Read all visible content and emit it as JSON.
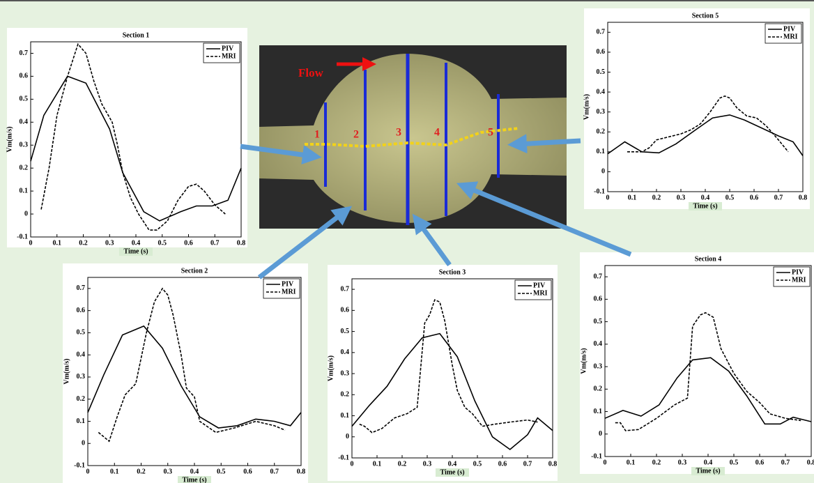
{
  "image": {
    "flow_label": "Flow",
    "section_labels": [
      "1",
      "2",
      "3",
      "4",
      "5"
    ]
  },
  "chart_data": [
    {
      "type": "line",
      "title": "Section 1",
      "x_label": "Time (s)",
      "y_label": "Vm(m/s)",
      "xlim": [
        0,
        0.8
      ],
      "ylim": [
        -0.1,
        0.75
      ],
      "xticks": [
        0,
        0.1,
        0.2,
        0.3,
        0.4,
        0.5,
        0.6,
        0.7,
        0.8
      ],
      "yticks": [
        -0.1,
        0,
        0.1,
        0.2,
        0.3,
        0.4,
        0.5,
        0.6,
        0.7
      ],
      "legend": "upper-right",
      "series": [
        {
          "name": "PIV",
          "color": "#000000",
          "line_style": "solid",
          "x": [
            0,
            0.05,
            0.14,
            0.21,
            0.3,
            0.35,
            0.43,
            0.49,
            0.57,
            0.63,
            0.69,
            0.75,
            0.8
          ],
          "values": [
            0.23,
            0.43,
            0.6,
            0.57,
            0.37,
            0.18,
            0.01,
            -0.03,
            0.01,
            0.035,
            0.035,
            0.06,
            0.2
          ]
        },
        {
          "name": "MRI",
          "color": "#000000",
          "line_style": "dashed",
          "x": [
            0.04,
            0.07,
            0.1,
            0.14,
            0.18,
            0.21,
            0.24,
            0.27,
            0.31,
            0.33,
            0.35,
            0.38,
            0.41,
            0.45,
            0.48,
            0.52,
            0.56,
            0.6,
            0.63,
            0.66,
            0.7,
            0.74
          ],
          "values": [
            0.02,
            0.2,
            0.43,
            0.6,
            0.74,
            0.7,
            0.58,
            0.48,
            0.4,
            0.3,
            0.18,
            0.07,
            0.0,
            -0.07,
            -0.07,
            -0.03,
            0.06,
            0.12,
            0.13,
            0.1,
            0.04,
            0.0
          ]
        }
      ]
    },
    {
      "type": "line",
      "title": "Section 2",
      "x_label": "Time (s)",
      "y_label": "Vm(m/s)",
      "xlim": [
        0,
        0.8
      ],
      "ylim": [
        -0.1,
        0.75
      ],
      "xticks": [
        0,
        0.1,
        0.2,
        0.3,
        0.4,
        0.5,
        0.6,
        0.7,
        0.8
      ],
      "yticks": [
        -0.1,
        0,
        0.1,
        0.2,
        0.3,
        0.4,
        0.5,
        0.6,
        0.7
      ],
      "legend": "upper-right",
      "series": [
        {
          "name": "PIV",
          "color": "#000000",
          "line_style": "solid",
          "x": [
            0,
            0.06,
            0.13,
            0.21,
            0.28,
            0.35,
            0.42,
            0.49,
            0.56,
            0.63,
            0.7,
            0.76,
            0.8
          ],
          "values": [
            0.14,
            0.31,
            0.49,
            0.53,
            0.43,
            0.26,
            0.12,
            0.07,
            0.08,
            0.11,
            0.1,
            0.08,
            0.14
          ]
        },
        {
          "name": "MRI",
          "color": "#000000",
          "line_style": "dashed",
          "x": [
            0.04,
            0.08,
            0.11,
            0.14,
            0.18,
            0.22,
            0.25,
            0.28,
            0.3,
            0.32,
            0.35,
            0.37,
            0.4,
            0.42,
            0.48,
            0.55,
            0.63,
            0.7,
            0.74
          ],
          "values": [
            0.05,
            0.01,
            0.12,
            0.22,
            0.27,
            0.5,
            0.64,
            0.7,
            0.67,
            0.58,
            0.4,
            0.25,
            0.21,
            0.1,
            0.05,
            0.07,
            0.1,
            0.08,
            0.06
          ]
        }
      ]
    },
    {
      "type": "line",
      "title": "Section 3",
      "x_label": "Time (s)",
      "y_label": "Vm(m/s)",
      "xlim": [
        0,
        0.8
      ],
      "ylim": [
        -0.1,
        0.75
      ],
      "xticks": [
        0,
        0.1,
        0.2,
        0.3,
        0.4,
        0.5,
        0.6,
        0.7,
        0.8
      ],
      "yticks": [
        -0.1,
        0,
        0.1,
        0.2,
        0.3,
        0.4,
        0.5,
        0.6,
        0.7
      ],
      "legend": "upper-right",
      "series": [
        {
          "name": "PIV",
          "color": "#000000",
          "line_style": "solid",
          "x": [
            0,
            0.07,
            0.14,
            0.21,
            0.28,
            0.35,
            0.42,
            0.49,
            0.56,
            0.63,
            0.7,
            0.74,
            0.8
          ],
          "values": [
            0.05,
            0.15,
            0.24,
            0.37,
            0.47,
            0.49,
            0.38,
            0.17,
            0.0,
            -0.06,
            0.01,
            0.09,
            0.03
          ]
        },
        {
          "name": "MRI",
          "color": "#000000",
          "line_style": "dashed",
          "x": [
            0.03,
            0.05,
            0.08,
            0.12,
            0.17,
            0.22,
            0.26,
            0.29,
            0.31,
            0.33,
            0.35,
            0.37,
            0.4,
            0.42,
            0.45,
            0.48,
            0.52,
            0.57,
            0.63,
            0.7,
            0.74
          ],
          "values": [
            0.06,
            0.05,
            0.02,
            0.04,
            0.09,
            0.11,
            0.14,
            0.54,
            0.58,
            0.65,
            0.64,
            0.55,
            0.34,
            0.22,
            0.14,
            0.11,
            0.05,
            0.06,
            0.07,
            0.08,
            0.07
          ]
        }
      ]
    },
    {
      "type": "line",
      "title": "Section 4",
      "x_label": "Time (s)",
      "y_label": "Vm(m/s)",
      "xlim": [
        0,
        0.8
      ],
      "ylim": [
        -0.1,
        0.75
      ],
      "xticks": [
        0,
        0.1,
        0.2,
        0.3,
        0.4,
        0.5,
        0.6,
        0.7,
        0.8
      ],
      "yticks": [
        -0.1,
        0,
        0.1,
        0.2,
        0.3,
        0.4,
        0.5,
        0.6,
        0.7
      ],
      "legend": "upper-right",
      "series": [
        {
          "name": "PIV",
          "color": "#000000",
          "line_style": "solid",
          "x": [
            0,
            0.07,
            0.14,
            0.21,
            0.28,
            0.34,
            0.41,
            0.48,
            0.55,
            0.62,
            0.68,
            0.73,
            0.8
          ],
          "values": [
            0.07,
            0.105,
            0.08,
            0.13,
            0.25,
            0.33,
            0.34,
            0.28,
            0.17,
            0.045,
            0.045,
            0.075,
            0.055
          ]
        },
        {
          "name": "MRI",
          "color": "#000000",
          "line_style": "dashed",
          "x": [
            0.04,
            0.06,
            0.08,
            0.13,
            0.2,
            0.27,
            0.32,
            0.34,
            0.37,
            0.39,
            0.42,
            0.45,
            0.5,
            0.55,
            0.6,
            0.64,
            0.7,
            0.76
          ],
          "values": [
            0.05,
            0.05,
            0.015,
            0.02,
            0.07,
            0.13,
            0.16,
            0.48,
            0.53,
            0.54,
            0.52,
            0.38,
            0.27,
            0.19,
            0.14,
            0.09,
            0.07,
            0.06
          ]
        }
      ]
    },
    {
      "type": "line",
      "title": "Section 5",
      "x_label": "Time (s)",
      "y_label": "Vm(m/s)",
      "xlim": [
        0,
        0.8
      ],
      "ylim": [
        -0.1,
        0.75
      ],
      "xticks": [
        0,
        0.1,
        0.2,
        0.3,
        0.4,
        0.5,
        0.6,
        0.7,
        0.8
      ],
      "yticks": [
        -0.1,
        0,
        0.1,
        0.2,
        0.3,
        0.4,
        0.5,
        0.6,
        0.7
      ],
      "legend": "upper-right",
      "series": [
        {
          "name": "PIV",
          "color": "#000000",
          "line_style": "solid",
          "x": [
            0,
            0.07,
            0.14,
            0.21,
            0.28,
            0.36,
            0.43,
            0.5,
            0.56,
            0.63,
            0.7,
            0.76,
            0.8
          ],
          "values": [
            0.09,
            0.15,
            0.1,
            0.095,
            0.14,
            0.21,
            0.27,
            0.285,
            0.26,
            0.22,
            0.18,
            0.15,
            0.08
          ]
        },
        {
          "name": "MRI",
          "color": "#000000",
          "line_style": "dashed",
          "x": [
            0.08,
            0.14,
            0.17,
            0.2,
            0.25,
            0.3,
            0.34,
            0.38,
            0.42,
            0.46,
            0.48,
            0.5,
            0.53,
            0.57,
            0.61,
            0.65,
            0.7,
            0.74
          ],
          "values": [
            0.1,
            0.1,
            0.12,
            0.16,
            0.175,
            0.19,
            0.21,
            0.24,
            0.3,
            0.37,
            0.38,
            0.37,
            0.32,
            0.28,
            0.27,
            0.23,
            0.16,
            0.1
          ]
        }
      ]
    }
  ]
}
